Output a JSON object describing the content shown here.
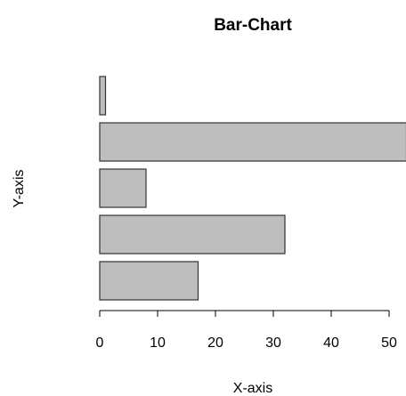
{
  "chart_data": {
    "type": "bar",
    "orientation": "horizontal",
    "title": "Bar-Chart",
    "xlabel": "X-axis",
    "ylabel": "Y-axis",
    "values": [
      17,
      32,
      8,
      53,
      1
    ],
    "xlim": [
      0,
      53
    ],
    "xticks": [
      0,
      10,
      20,
      30,
      40,
      50
    ],
    "xtick_labels": [
      "0",
      "10",
      "20",
      "30",
      "40",
      "50"
    ],
    "bar_color": "#bebebe",
    "bar_edge_color": "#333333",
    "grid": false
  }
}
